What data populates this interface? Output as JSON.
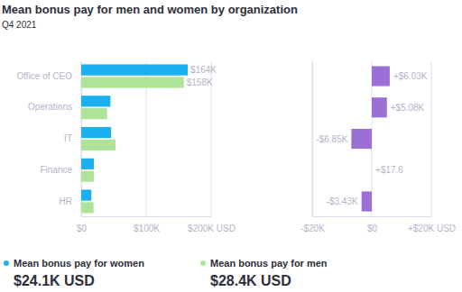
{
  "chart_data": [
    {
      "type": "bar",
      "title": "Mean bonus pay for men and women by organization",
      "subtitle": "Q4 2021",
      "orientation": "horizontal",
      "categories": [
        "Office of CEO",
        "Operations",
        "IT",
        "Finance",
        "HR"
      ],
      "series": [
        {
          "name": "Mean bonus pay for women",
          "color": "#1ab0f0",
          "values": [
            164000,
            45000,
            46000,
            19500,
            15600
          ],
          "value_labels": [
            "$164K",
            null,
            null,
            null,
            null
          ],
          "mean_label": "$24.1K USD"
        },
        {
          "name": "Mean bonus pay for men",
          "color": "#aee39a",
          "values": [
            157970,
            39920,
            52850,
            19482.4,
            19030
          ],
          "value_labels": [
            "$158K",
            null,
            null,
            null,
            null
          ],
          "mean_label": "$28.4K USD"
        }
      ],
      "xlim": [
        0,
        200000
      ],
      "xticks": [
        {
          "value": 0,
          "label": "$0"
        },
        {
          "value": 100000,
          "label": "$100K"
        },
        {
          "value": 200000,
          "label": "$200K USD"
        }
      ],
      "grid": true,
      "data_labels": true,
      "legend": "bottom"
    },
    {
      "type": "bar",
      "orientation": "horizontal",
      "categories": [
        null,
        null,
        null,
        null,
        null
      ],
      "values": [
        6030,
        5080,
        -6850,
        17.6,
        -3430
      ],
      "value_labels": [
        "+$6.03K",
        "+$5.08K",
        "-$6.85K",
        "+$17.6",
        "-$3.43K"
      ],
      "color": "#9b6fd6",
      "xlim": [
        -20000,
        20000
      ],
      "xticks": [
        {
          "value": -20000,
          "label": "-$20K"
        },
        {
          "value": 0,
          "label": "$0"
        },
        {
          "value": 20000,
          "label": "+$20K USD"
        }
      ],
      "grid": true,
      "data_labels": true,
      "tick_labels": "x"
    }
  ]
}
